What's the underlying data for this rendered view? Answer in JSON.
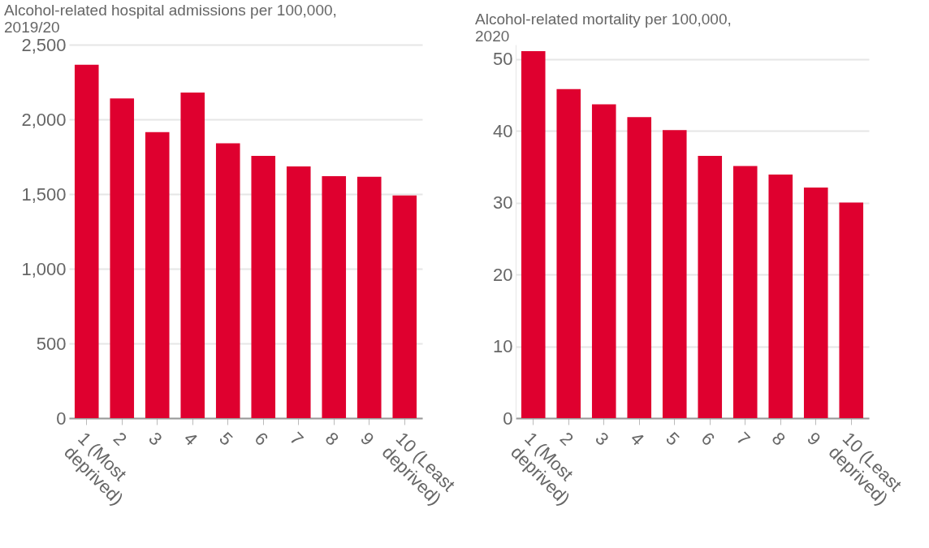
{
  "chart_data": [
    {
      "type": "bar",
      "title": "Alcohol-related hospital admissions per 100,000, 2019/20",
      "categories": [
        "1 (Most deprived)",
        "2",
        "3",
        "4",
        "5",
        "6",
        "7",
        "8",
        "9",
        "10 (Least deprived)"
      ],
      "values": [
        2365,
        2140,
        1915,
        2180,
        1840,
        1755,
        1685,
        1620,
        1615,
        1490
      ],
      "color": "#df002f",
      "ylim": [
        0,
        2500
      ],
      "yticks": [
        0,
        500,
        {
          "value": 1000,
          "label": "1,000"
        },
        {
          "value": 1500,
          "label": "1,500"
        },
        {
          "value": 2000,
          "label": "2,000"
        },
        {
          "value": 2500,
          "label": "2,500"
        }
      ],
      "grid": "y"
    },
    {
      "type": "bar",
      "title": "Alcohol-related mortality per 100,000, 2020",
      "categories": [
        "1 (Most deprived)",
        "2",
        "3",
        "4",
        "5",
        "6",
        "7",
        "8",
        "9",
        "10 (Least deprived)"
      ],
      "values": [
        51.1,
        45.8,
        43.7,
        41.9,
        40.1,
        36.5,
        35.1,
        33.9,
        32.1,
        30.0
      ],
      "color": "#df002f",
      "ylim": [
        0,
        52
      ],
      "yticks": [
        0,
        10,
        20,
        30,
        40,
        50
      ],
      "grid": "y"
    }
  ]
}
